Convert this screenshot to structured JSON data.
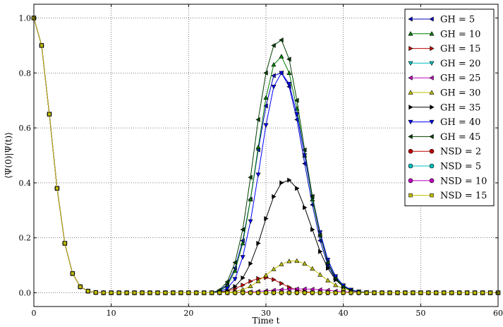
{
  "chart_data": {
    "type": "line",
    "title": "",
    "xlabel": "Time t",
    "ylabel": "⟨Ψ(0)|Ψ(t)⟩",
    "xlim": [
      0,
      60
    ],
    "ylim": [
      -0.05,
      1.05
    ],
    "xticks": [
      0,
      10,
      20,
      30,
      40,
      50,
      60
    ],
    "yticks": [
      0.0,
      0.2,
      0.4,
      0.6,
      0.8,
      1.0
    ],
    "xtick_labels": [
      "0",
      "10",
      "20",
      "30",
      "40",
      "50",
      "60"
    ],
    "ytick_labels": [
      "0.0",
      "0.2",
      "0.4",
      "0.6",
      "0.8",
      "1.0"
    ],
    "grid": true,
    "legend_position": "top-right",
    "x": [
      0,
      1,
      2,
      3,
      4,
      5,
      6,
      7,
      8,
      9,
      10,
      11,
      12,
      13,
      14,
      15,
      16,
      17,
      18,
      19,
      20,
      21,
      22,
      23,
      24,
      25,
      26,
      27,
      28,
      29,
      30,
      31,
      32,
      33,
      34,
      35,
      36,
      37,
      38,
      39,
      40,
      41,
      42,
      43,
      44,
      45,
      46,
      47,
      48,
      49,
      50,
      51,
      52,
      53,
      54,
      55,
      56,
      57,
      58,
      59,
      60
    ],
    "series": [
      {
        "name": "GH = 5",
        "color": "#0000bf",
        "marker": "triangle-left",
        "values": [
          1.0,
          0.9,
          0.65,
          0.38,
          0.18,
          0.07,
          0.022,
          0.006,
          0.001,
          0,
          0,
          0,
          0,
          0,
          0,
          0,
          0,
          0,
          0,
          0,
          0,
          0,
          0,
          0,
          0.008,
          0.03,
          0.09,
          0.19,
          0.34,
          0.52,
          0.68,
          0.79,
          0.8,
          0.75,
          0.63,
          0.47,
          0.32,
          0.19,
          0.1,
          0.05,
          0.022,
          0.009,
          0.003,
          0.001,
          0,
          0,
          0,
          0,
          0,
          0,
          0,
          0,
          0,
          0,
          0,
          0,
          0,
          0,
          0,
          0,
          0
        ]
      },
      {
        "name": "GH = 10",
        "color": "#008000",
        "marker": "triangle-up",
        "values": [
          1.0,
          0.9,
          0.65,
          0.38,
          0.18,
          0.07,
          0.022,
          0.006,
          0.001,
          0,
          0,
          0,
          0,
          0,
          0,
          0,
          0,
          0,
          0,
          0,
          0,
          0,
          0,
          0,
          0.006,
          0.026,
          0.08,
          0.18,
          0.34,
          0.53,
          0.71,
          0.83,
          0.86,
          0.8,
          0.67,
          0.5,
          0.34,
          0.21,
          0.11,
          0.055,
          0.024,
          0.009,
          0.003,
          0.001,
          0,
          0,
          0,
          0,
          0,
          0,
          0,
          0,
          0,
          0,
          0,
          0,
          0,
          0,
          0,
          0,
          0
        ]
      },
      {
        "name": "GH = 15",
        "color": "#bf0000",
        "marker": "triangle-right",
        "values": [
          1.0,
          0.9,
          0.65,
          0.38,
          0.18,
          0.07,
          0.022,
          0.006,
          0.001,
          0,
          0,
          0,
          0,
          0,
          0,
          0,
          0,
          0,
          0,
          0,
          0,
          0,
          0,
          0,
          0.002,
          0.006,
          0.015,
          0.028,
          0.042,
          0.052,
          0.055,
          0.048,
          0.034,
          0.02,
          0.01,
          0.004,
          0.001,
          0,
          0,
          0,
          0,
          0,
          0,
          0,
          0,
          0,
          0,
          0,
          0,
          0,
          0,
          0,
          0,
          0,
          0,
          0,
          0,
          0,
          0,
          0,
          0
        ]
      },
      {
        "name": "GH = 20",
        "color": "#00bfbf",
        "marker": "triangle-down",
        "values": [
          1.0,
          0.9,
          0.65,
          0.38,
          0.18,
          0.07,
          0.022,
          0.006,
          0.001,
          0,
          0,
          0,
          0,
          0,
          0,
          0,
          0,
          0,
          0,
          0,
          0,
          0,
          0,
          0,
          0,
          0,
          0,
          0,
          0,
          0,
          0,
          0,
          0,
          0,
          0,
          0,
          0,
          0,
          0,
          0,
          0,
          0,
          0,
          0,
          0,
          0,
          0,
          0,
          0,
          0,
          0,
          0,
          0,
          0,
          0,
          0,
          0,
          0,
          0,
          0,
          0
        ]
      },
      {
        "name": "GH = 25",
        "color": "#bf00bf",
        "marker": "triangle-left",
        "values": [
          1.0,
          0.9,
          0.65,
          0.38,
          0.18,
          0.07,
          0.022,
          0.006,
          0.001,
          0,
          0,
          0,
          0,
          0,
          0,
          0,
          0,
          0,
          0,
          0,
          0,
          0,
          0,
          0,
          0,
          0,
          0.001,
          0.002,
          0.003,
          0.005,
          0.007,
          0.009,
          0.011,
          0.013,
          0.014,
          0.014,
          0.013,
          0.011,
          0.009,
          0.006,
          0.004,
          0.002,
          0.001,
          0,
          0,
          0,
          0,
          0,
          0,
          0,
          0,
          0,
          0,
          0,
          0,
          0,
          0,
          0,
          0,
          0,
          0
        ]
      },
      {
        "name": "GH = 30",
        "color": "#bfbf00",
        "marker": "triangle-up",
        "values": [
          1.0,
          0.9,
          0.65,
          0.38,
          0.18,
          0.07,
          0.022,
          0.006,
          0.001,
          0,
          0,
          0,
          0,
          0,
          0,
          0,
          0,
          0,
          0,
          0,
          0,
          0,
          0,
          0,
          0,
          0.002,
          0.005,
          0.012,
          0.024,
          0.042,
          0.064,
          0.086,
          0.104,
          0.115,
          0.116,
          0.106,
          0.088,
          0.066,
          0.045,
          0.028,
          0.015,
          0.008,
          0.003,
          0.001,
          0,
          0,
          0,
          0,
          0,
          0,
          0,
          0,
          0,
          0,
          0,
          0,
          0,
          0,
          0,
          0,
          0
        ]
      },
      {
        "name": "GH = 35",
        "color": "#000000",
        "marker": "triangle-right",
        "values": [
          1.0,
          0.9,
          0.65,
          0.38,
          0.18,
          0.07,
          0.022,
          0.006,
          0.001,
          0,
          0,
          0,
          0,
          0,
          0,
          0,
          0,
          0,
          0,
          0,
          0,
          0,
          0,
          0,
          0.002,
          0.008,
          0.023,
          0.054,
          0.106,
          0.18,
          0.27,
          0.35,
          0.4,
          0.41,
          0.38,
          0.31,
          0.23,
          0.15,
          0.089,
          0.047,
          0.022,
          0.009,
          0.003,
          0.001,
          0,
          0,
          0,
          0,
          0,
          0,
          0,
          0,
          0,
          0,
          0,
          0,
          0,
          0,
          0,
          0,
          0
        ]
      },
      {
        "name": "GH = 40",
        "color": "#0000ff",
        "marker": "triangle-down",
        "values": [
          1.0,
          0.9,
          0.65,
          0.38,
          0.18,
          0.07,
          0.022,
          0.006,
          0.001,
          0,
          0,
          0,
          0,
          0,
          0,
          0,
          0,
          0,
          0,
          0,
          0,
          0,
          0,
          0,
          0.004,
          0.016,
          0.05,
          0.13,
          0.26,
          0.43,
          0.61,
          0.75,
          0.8,
          0.76,
          0.65,
          0.5,
          0.35,
          0.22,
          0.12,
          0.06,
          0.027,
          0.011,
          0.004,
          0.001,
          0,
          0,
          0,
          0,
          0,
          0,
          0,
          0,
          0,
          0,
          0,
          0,
          0,
          0,
          0,
          0,
          0
        ]
      },
      {
        "name": "GH = 45",
        "color": "#004000",
        "marker": "triangle-left",
        "values": [
          1.0,
          0.9,
          0.65,
          0.38,
          0.18,
          0.07,
          0.022,
          0.006,
          0.001,
          0,
          0,
          0,
          0,
          0,
          0,
          0,
          0,
          0,
          0,
          0,
          0,
          0,
          0,
          0,
          0.01,
          0.04,
          0.11,
          0.23,
          0.42,
          0.63,
          0.8,
          0.9,
          0.92,
          0.85,
          0.7,
          0.52,
          0.35,
          0.21,
          0.11,
          0.052,
          0.022,
          0.008,
          0.003,
          0.001,
          0,
          0,
          0,
          0,
          0,
          0,
          0,
          0,
          0,
          0,
          0,
          0,
          0,
          0,
          0,
          0,
          0
        ]
      },
      {
        "name": "NSD = 2",
        "color": "#bf0000",
        "marker": "circle",
        "values": [
          1.0,
          0.9,
          0.65,
          0.38,
          0.18,
          0.07,
          0.022,
          0.006,
          0.001,
          0,
          0,
          0,
          0,
          0,
          0,
          0,
          0,
          0,
          0,
          0,
          0,
          0,
          0,
          0,
          0,
          0,
          0,
          0,
          0,
          0,
          0,
          0,
          0,
          0,
          0,
          0,
          0,
          0,
          0,
          0,
          0,
          0,
          0,
          0,
          0,
          0,
          0,
          0,
          0,
          0,
          0,
          0,
          0,
          0,
          0,
          0,
          0,
          0,
          0,
          0,
          0
        ]
      },
      {
        "name": "NSD = 5",
        "color": "#00bfbf",
        "marker": "circle",
        "values": [
          1.0,
          0.9,
          0.65,
          0.38,
          0.18,
          0.07,
          0.022,
          0.006,
          0.001,
          0,
          0,
          0,
          0,
          0,
          0,
          0,
          0,
          0,
          0,
          0,
          0,
          0,
          0,
          0,
          0,
          0,
          0,
          0,
          0,
          0,
          0,
          0,
          0,
          0,
          0,
          0,
          0,
          0,
          0,
          0,
          0,
          0,
          0,
          0,
          0,
          0,
          0,
          0,
          0,
          0,
          0,
          0,
          0,
          0,
          0,
          0,
          0,
          0,
          0,
          0,
          0
        ]
      },
      {
        "name": "NSD = 10",
        "color": "#bf00bf",
        "marker": "circle",
        "values": [
          1.0,
          0.9,
          0.65,
          0.38,
          0.18,
          0.07,
          0.022,
          0.006,
          0.001,
          0,
          0,
          0,
          0,
          0,
          0,
          0,
          0,
          0,
          0,
          0,
          0,
          0,
          0,
          0,
          0,
          0,
          0,
          0,
          0,
          0,
          0,
          0,
          0,
          0,
          0,
          0,
          0,
          0,
          0,
          0,
          0,
          0,
          0,
          0,
          0,
          0,
          0,
          0,
          0,
          0,
          0,
          0,
          0,
          0,
          0,
          0,
          0,
          0,
          0,
          0,
          0
        ]
      },
      {
        "name": "NSD = 15",
        "color": "#bfbf00",
        "marker": "square",
        "values": [
          1.0,
          0.9,
          0.65,
          0.38,
          0.18,
          0.07,
          0.022,
          0.006,
          0.001,
          0,
          0,
          0,
          0,
          0,
          0,
          0,
          0,
          0,
          0,
          0,
          0,
          0,
          0,
          0,
          0,
          0,
          0,
          0,
          0,
          0,
          0,
          0,
          0,
          0,
          0,
          0,
          0,
          0,
          0,
          0,
          0,
          0,
          0,
          0,
          0,
          0,
          0,
          0,
          0,
          0,
          0,
          0,
          0,
          0,
          0,
          0,
          0,
          0,
          0,
          0,
          0
        ]
      }
    ]
  }
}
